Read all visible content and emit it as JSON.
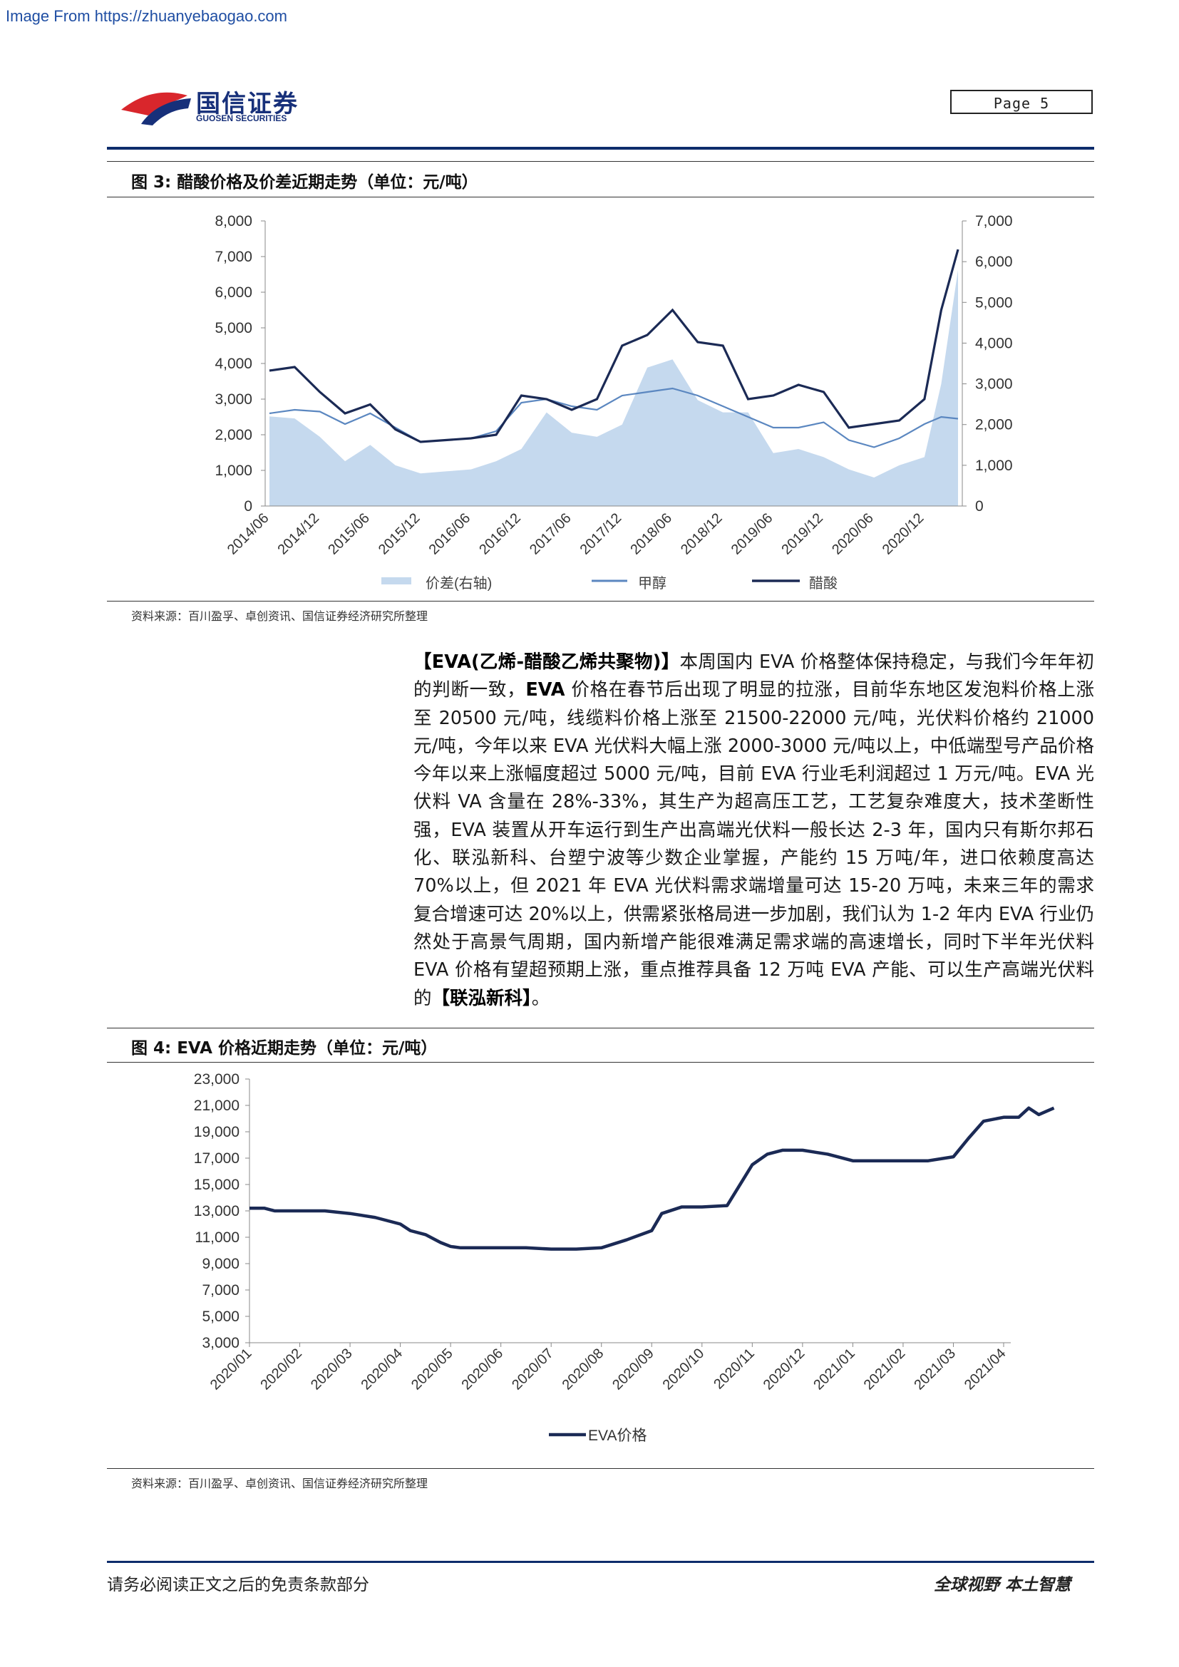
{
  "watermark": "Image From https://zhuanyebaogao.com",
  "header": {
    "logo_cn": "国信证券",
    "logo_en": "GUOSEN SECURITIES",
    "page_label": "Page  5"
  },
  "colors": {
    "navy": "#1b2a55",
    "spread_fill": "#c5d9ee",
    "methanol": "#5b87c0",
    "logo_red": "#d9262c",
    "logo_blue": "#17307a"
  },
  "figure3": {
    "title": "图 3:  醋酸价格及价差近期走势（单位：元/吨）",
    "source": "资料来源：百川盈孚、卓创资讯、国信证券经济研究所整理",
    "chart_data": {
      "type": "line",
      "x_tick_labels": [
        "2014/06",
        "2014/12",
        "2015/06",
        "2015/12",
        "2016/06",
        "2016/12",
        "2017/06",
        "2017/12",
        "2018/06",
        "2018/12",
        "2019/06",
        "2019/12",
        "2020/06",
        "2020/12"
      ],
      "y_left_ticks": [
        "8,000",
        "7,000",
        "6,000",
        "5,000",
        "4,000",
        "3,000",
        "2,000",
        "1,000",
        "0"
      ],
      "y_right_ticks": [
        "7,000",
        "6,000",
        "5,000",
        "4,000",
        "3,000",
        "2,000",
        "1,000",
        "0"
      ],
      "ylim_left": [
        0,
        8000
      ],
      "ylim_right": [
        0,
        7000
      ],
      "legend": [
        "价差(右轴)",
        "甲醇",
        "醋酸"
      ],
      "legend_position": "bottom",
      "x": [
        "2014/06",
        "2014/09",
        "2014/12",
        "2015/03",
        "2015/06",
        "2015/09",
        "2015/12",
        "2016/03",
        "2016/06",
        "2016/09",
        "2016/12",
        "2017/03",
        "2017/06",
        "2017/09",
        "2017/12",
        "2018/03",
        "2018/06",
        "2018/09",
        "2018/12",
        "2019/03",
        "2019/06",
        "2019/09",
        "2019/12",
        "2020/03",
        "2020/06",
        "2020/09",
        "2020/12",
        "2021/02",
        "2021/04"
      ],
      "series": [
        {
          "name": "价差(右轴)",
          "axis": "right",
          "type": "area",
          "values": [
            2200,
            2150,
            1700,
            1100,
            1500,
            1000,
            800,
            850,
            900,
            1100,
            1400,
            2300,
            1800,
            1700,
            2000,
            3400,
            3600,
            2600,
            2300,
            2300,
            1300,
            1400,
            1200,
            900,
            700,
            1000,
            1200,
            3000,
            5800
          ]
        },
        {
          "name": "甲醇",
          "axis": "left",
          "values": [
            2600,
            2700,
            2650,
            2300,
            2600,
            2200,
            1800,
            1850,
            1900,
            2100,
            2900,
            3000,
            2800,
            2700,
            3100,
            3200,
            3300,
            3100,
            2800,
            2500,
            2200,
            2200,
            2350,
            1850,
            1650,
            1900,
            2300,
            2500,
            2450
          ]
        },
        {
          "name": "醋酸",
          "axis": "left",
          "values": [
            3800,
            3900,
            3200,
            2600,
            2850,
            2150,
            1800,
            1850,
            1900,
            2000,
            3100,
            3000,
            2700,
            3000,
            4500,
            4800,
            5500,
            4600,
            4500,
            3000,
            3100,
            3400,
            3200,
            2200,
            2300,
            2400,
            3000,
            5500,
            7200
          ]
        }
      ]
    }
  },
  "body": {
    "b1": "【EVA(乙烯-醋酸乙烯共聚物)】",
    "t1": "本周国内 EVA 价格整体保持稳定，与我们今年年初的判断一致，",
    "b2": "EVA",
    "t2": " 价格在春节后出现了明显的拉涨，目前华东地区发泡料价格上涨至 20500 元/吨，线缆料价格上涨至 21500-22000 元/吨，光伏料价格约 21000 元/吨，今年以来 EVA 光伏料大幅上涨 2000-3000 元/吨以上，中低端型号产品价格今年以来上涨幅度超过 5000 元/吨，目前 EVA 行业毛利润超过 1 万元/吨。EVA 光伏料 VA 含量在 28%-33%，其生产为超高压工艺，工艺复杂难度大，技术垄断性强，EVA 装置从开车运行到生产出高端光伏料一般长达 2-3 年，国内只有斯尔邦石化、联泓新科、台塑宁波等少数企业掌握，产能约 15 万吨/年，进口依赖度高达 70%以上，但 2021 年 EVA 光伏料需求端增量可达 15-20 万吨，未来三年的需求复合增速可达 20%以上，供需紧张格局进一步加剧，我们认为 1-2 年内 EVA 行业仍然处于高景气周期，国内新增产能很难满足需求端的高速增长，同时下半年光伏料 EVA 价格有望超预期上涨，重点推荐具备 12 万吨 EVA 产能、可以生产高端光伏料的",
    "b3": "【联泓新科】",
    "t3": "。"
  },
  "figure4": {
    "title": "图 4:  EVA 价格近期走势（单位：元/吨）",
    "source": "资料来源：百川盈孚、卓创资讯、国信证券经济研究所整理",
    "chart_data": {
      "type": "line",
      "x_tick_labels": [
        "2020/01",
        "2020/02",
        "2020/03",
        "2020/04",
        "2020/05",
        "2020/06",
        "2020/07",
        "2020/08",
        "2020/09",
        "2020/10",
        "2020/11",
        "2020/12",
        "2021/01",
        "2021/02",
        "2021/03",
        "2021/04"
      ],
      "y_ticks": [
        "23,000",
        "21,000",
        "19,000",
        "17,000",
        "15,000",
        "13,000",
        "11,000",
        "9,000",
        "7,000",
        "5,000",
        "3,000"
      ],
      "ylim": [
        3000,
        23000
      ],
      "legend": [
        "EVA价格"
      ],
      "legend_position": "bottom",
      "series": [
        {
          "name": "EVA价格",
          "x": [
            0,
            0.3,
            0.5,
            1,
            1.5,
            2,
            2.5,
            3,
            3.2,
            3.5,
            3.8,
            4,
            4.2,
            4.5,
            5,
            5.5,
            6,
            6.5,
            7,
            7.5,
            8,
            8.2,
            8.6,
            9,
            9.5,
            10,
            10.3,
            10.6,
            11,
            11.5,
            12,
            13,
            13.5,
            14,
            14.3,
            14.6,
            15,
            15.3,
            15.5,
            15.7,
            16
          ],
          "values": [
            13200,
            13200,
            13000,
            13000,
            13000,
            12800,
            12500,
            12000,
            11500,
            11200,
            10600,
            10300,
            10200,
            10200,
            10200,
            10200,
            10100,
            10100,
            10200,
            10800,
            11500,
            12800,
            13300,
            13300,
            13400,
            16500,
            17300,
            17600,
            17600,
            17300,
            16800,
            16800,
            16800,
            17100,
            18500,
            19800,
            20100,
            20100,
            20800,
            20300,
            20800
          ]
        }
      ]
    }
  },
  "footer": {
    "left": "请务必阅读正文之后的免责条款部分",
    "right": "全球视野  本土智慧"
  }
}
